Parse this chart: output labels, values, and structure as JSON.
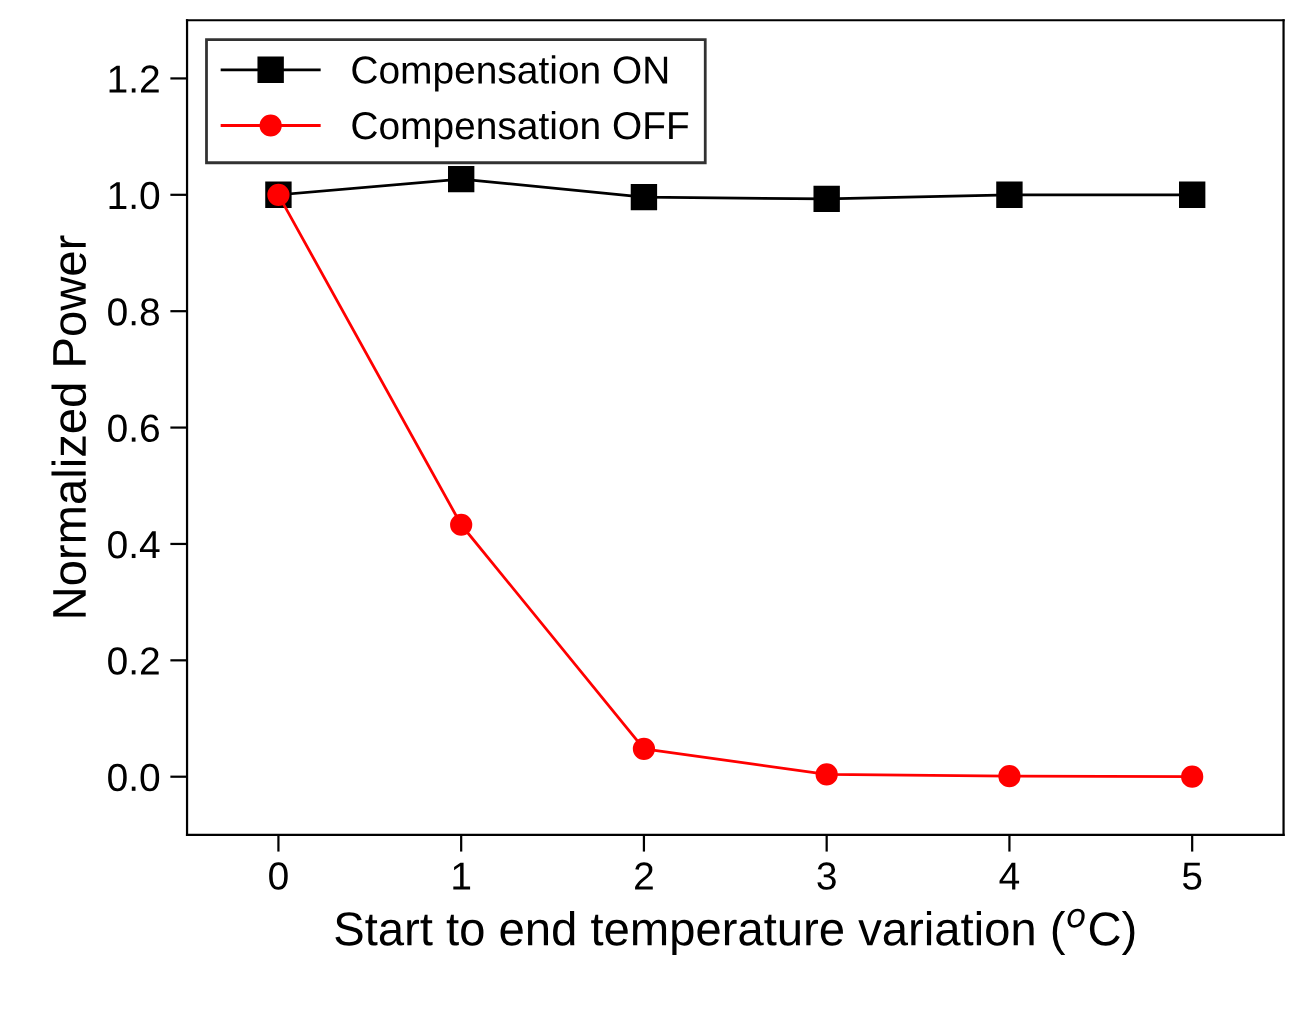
{
  "chart_data": {
    "type": "line",
    "xlabel": "Start to end temperature variation ($^{o}$C)",
    "ylabel": "Normalized Power",
    "x": [
      0,
      1,
      2,
      3,
      4,
      5
    ],
    "series": [
      {
        "name": "Compensation ON",
        "color": "#000000",
        "marker": "square",
        "values": [
          1.0,
          1.027,
          0.996,
          0.993,
          1.0,
          1.0
        ]
      },
      {
        "name": "Compensation OFF",
        "color": "#ff0000",
        "marker": "circle",
        "values": [
          1.0,
          0.433,
          0.048,
          0.004,
          0.001,
          0.0
        ]
      }
    ],
    "xlim": [
      -0.5,
      5.5
    ],
    "ylim": [
      -0.1,
      1.3
    ],
    "xticks": [
      0,
      1,
      2,
      3,
      4,
      5
    ],
    "yticks": [
      {
        "value": 0,
        "label": "0.0"
      },
      {
        "value": 0.2,
        "label": "0.2"
      },
      {
        "value": 0.4,
        "label": "0.4"
      },
      {
        "value": 0.6,
        "label": "0.6"
      },
      {
        "value": 0.8,
        "label": "0.8"
      },
      {
        "value": 1.0,
        "label": "1.0"
      },
      {
        "value": 1.2,
        "label": "1.2"
      }
    ],
    "grid": false,
    "legend": "top left",
    "line_style": "solid"
  }
}
